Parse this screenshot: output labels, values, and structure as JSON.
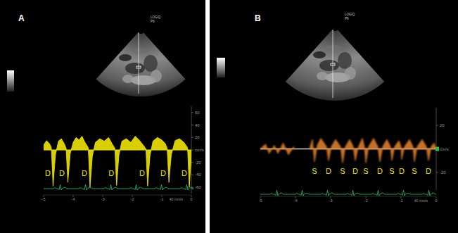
{
  "chart_data": [
    {
      "type": "area",
      "panel_label": "A",
      "device_label": [
        "LOGIQ",
        "P9"
      ],
      "color": "#f0e400",
      "x": [
        -5.0,
        -4.9,
        -4.8,
        -4.74,
        -4.68,
        -4.6,
        -4.5,
        -4.4,
        -4.3,
        -4.24,
        -4.18,
        -4.1,
        -4.0,
        -3.9,
        -3.8,
        -3.7,
        -3.6,
        -3.49,
        -3.43,
        -3.35,
        -3.25,
        -3.1,
        -2.95,
        -2.8,
        -2.66,
        -2.59,
        -2.53,
        -2.45,
        -2.35,
        -2.2,
        -2.05,
        -1.9,
        -1.75,
        -1.6,
        -1.54,
        -1.48,
        -1.4,
        -1.3,
        -1.15,
        -1.0,
        -0.88,
        -0.82,
        -0.76,
        -0.68,
        -0.55,
        -0.4,
        -0.25,
        -0.13,
        -0.07,
        0.0
      ],
      "values": [
        8,
        15,
        10,
        4,
        -58,
        -8,
        14,
        18,
        10,
        3,
        -52,
        -6,
        12,
        20,
        16,
        22,
        12,
        4,
        -60,
        -10,
        12,
        18,
        14,
        20,
        8,
        3,
        -57,
        -8,
        14,
        18,
        12,
        22,
        15,
        6,
        2,
        -58,
        -9,
        14,
        20,
        16,
        10,
        3,
        -52,
        -8,
        15,
        18,
        12,
        4,
        -60,
        -10
      ],
      "xlim": [
        -5,
        0
      ],
      "xticks": [
        -5,
        -4,
        -3,
        -2,
        -1,
        0
      ],
      "ylim": [
        -70,
        70
      ],
      "yticks": [
        -60,
        -40,
        -20,
        {
          "value": 0,
          "label": "cm/s"
        },
        20,
        40,
        60
      ],
      "sweep_label": "40 mm/s",
      "annotations": [
        {
          "text": "D",
          "x": -4.86,
          "y": -37
        },
        {
          "text": "D",
          "x": -4.38,
          "y": -37
        },
        {
          "text": "D",
          "x": -3.62,
          "y": -37
        },
        {
          "text": "D",
          "x": -2.71,
          "y": -37
        },
        {
          "text": "D",
          "x": -1.67,
          "y": -37
        },
        {
          "text": "D",
          "x": -0.95,
          "y": -37
        },
        {
          "text": "D",
          "x": -0.24,
          "y": -37
        }
      ]
    },
    {
      "type": "area",
      "panel_label": "B",
      "device_label": [
        "LOGIQ",
        "P9"
      ],
      "color": "#e8842e",
      "x": [
        -5.0,
        -4.85,
        -4.75,
        -4.6,
        -4.5,
        -4.35,
        -4.2,
        -4.05,
        -3.95,
        -3.6,
        -3.52,
        -3.46,
        -3.38,
        -3.28,
        -3.12,
        -3.06,
        -2.98,
        -2.86,
        -2.72,
        -2.66,
        -2.58,
        -2.46,
        -2.36,
        -2.3,
        -2.22,
        -2.1,
        -2.04,
        -2.0,
        -1.92,
        -1.78,
        -1.66,
        -1.6,
        -1.52,
        -1.4,
        -1.3,
        -1.26,
        -1.18,
        -1.06,
        -1.0,
        -0.98,
        -0.9,
        -0.76,
        -0.66,
        -0.62,
        -0.54,
        -0.4,
        -0.28,
        -0.22,
        -0.14,
        -0.06,
        0.0
      ],
      "values": [
        0,
        4,
        -4,
        3,
        -4,
        5,
        -5,
        2,
        null,
        0,
        8,
        -11,
        3,
        9,
        2,
        -10,
        2,
        8,
        2,
        -12,
        2,
        8,
        2,
        -10,
        1,
        9,
        2,
        -12,
        2,
        9,
        2,
        -11,
        2,
        8,
        2,
        -10,
        2,
        7,
        2,
        -9,
        2,
        8,
        2,
        -11,
        2,
        8,
        2,
        -10,
        2,
        5,
        0
      ],
      "xlim": [
        -5,
        0
      ],
      "xticks": [
        -5,
        -4,
        -3,
        -2,
        -1,
        0
      ],
      "ylim": [
        -35,
        35
      ],
      "yticks": [
        -20,
        {
          "value": 0,
          "label": "cm/s"
        },
        20
      ],
      "sweep_label": "40 mm/s",
      "annotations": [
        {
          "text": "S",
          "x": -3.46,
          "y": -19
        },
        {
          "text": "D",
          "x": -3.06,
          "y": -19
        },
        {
          "text": "S",
          "x": -2.66,
          "y": -19
        },
        {
          "text": "D",
          "x": -2.3,
          "y": -19
        },
        {
          "text": "S",
          "x": -2.0,
          "y": -19
        },
        {
          "text": "D",
          "x": -1.6,
          "y": -19
        },
        {
          "text": "S",
          "x": -1.26,
          "y": -19
        },
        {
          "text": "D",
          "x": -0.98,
          "y": -19
        },
        {
          "text": "S",
          "x": -0.62,
          "y": -19
        },
        {
          "text": "D",
          "x": -0.22,
          "y": -19
        }
      ]
    }
  ]
}
